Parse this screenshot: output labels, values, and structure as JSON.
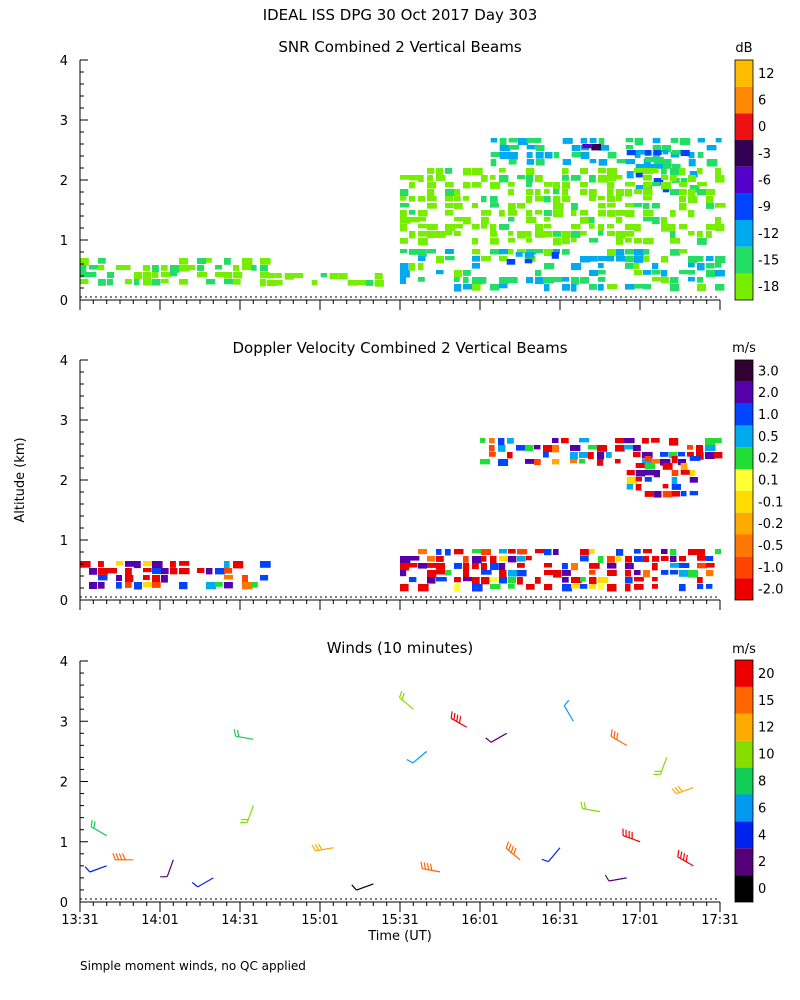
{
  "figure": {
    "title": "IDEAL ISS DPG  30 Oct 2017 Day 303",
    "y_axis_label": "Altitude (km)",
    "x_axis_label": "Time (UT)",
    "footnote": "Simple moment winds, no QC applied",
    "time_ticks": [
      "13:31",
      "14:01",
      "14:31",
      "15:01",
      "15:31",
      "16:01",
      "16:31",
      "17:01",
      "17:31"
    ],
    "altitude_ticks": [
      "0",
      "1",
      "2",
      "3",
      "4"
    ]
  },
  "chart_data": [
    {
      "type": "heatmap",
      "title": "SNR Combined 2 Vertical Beams",
      "xlabel": "",
      "ylabel": "Altitude (km)",
      "x_range": [
        "13:31",
        "17:31"
      ],
      "ylim": [
        0,
        4
      ],
      "colorbar": {
        "unit": "dB",
        "levels": [
          "-18",
          "-15",
          "-12",
          "-9",
          "-6",
          "-3",
          "0",
          "6",
          "12"
        ],
        "colors": [
          "#77ee00",
          "#22dd66",
          "#00aaee",
          "#0044ff",
          "#5500cc",
          "#330055",
          "#ee1111",
          "#ff8800",
          "#ffbb00"
        ]
      },
      "regions": [
        {
          "t0": "13:31",
          "t1": "14:41",
          "z0": 0.3,
          "z1": 0.7,
          "value": -16
        },
        {
          "t0": "14:41",
          "t1": "15:31",
          "z0": 0.25,
          "z1": 0.45,
          "value": -17
        },
        {
          "t0": "15:31",
          "t1": "17:31",
          "z0": 0.25,
          "z1": 0.85,
          "value": -13
        },
        {
          "t0": "16:11",
          "t1": "16:31",
          "z0": 0.6,
          "z1": 0.8,
          "value": -8
        },
        {
          "t0": "16:05",
          "t1": "17:31",
          "z0": 2.3,
          "z1": 2.7,
          "value": -12
        },
        {
          "t0": "16:36",
          "t1": "16:56",
          "z0": 2.5,
          "z1": 2.6,
          "value": -3
        },
        {
          "t0": "16:56",
          "t1": "17:21",
          "z0": 1.8,
          "z1": 2.5,
          "value": -10
        },
        {
          "t0": "15:31",
          "t1": "17:31",
          "z0": 1.0,
          "z1": 2.2,
          "value": -17
        }
      ]
    },
    {
      "type": "heatmap",
      "title": "Doppler Velocity Combined 2 Vertical Beams",
      "xlabel": "",
      "ylabel": "Altitude (km)",
      "x_range": [
        "13:31",
        "17:31"
      ],
      "ylim": [
        0,
        4
      ],
      "colorbar": {
        "unit": "m/s",
        "levels": [
          "-2.0",
          "-1.0",
          "-0.5",
          "-0.2",
          "-0.1",
          "0.1",
          "0.2",
          "0.5",
          "1.0",
          "2.0",
          "3.0"
        ],
        "colors": [
          "#ee0000",
          "#ff4400",
          "#ff7700",
          "#ffaa00",
          "#ffdd00",
          "#ffff33",
          "#22dd33",
          "#00aaee",
          "#0044ff",
          "#5500aa",
          "#330033"
        ]
      },
      "regions": [
        {
          "t0": "13:31",
          "t1": "14:41",
          "z0": 0.25,
          "z1": 0.65,
          "value": 0.0
        },
        {
          "t0": "15:31",
          "t1": "17:31",
          "z0": 0.25,
          "z1": 0.85,
          "value": -0.1
        },
        {
          "t0": "16:01",
          "t1": "17:31",
          "z0": 2.3,
          "z1": 2.7,
          "value": -0.2
        },
        {
          "t0": "16:56",
          "t1": "17:21",
          "z0": 1.75,
          "z1": 2.4,
          "value": -0.15
        }
      ]
    },
    {
      "type": "scatter",
      "title": "Winds (10 minutes)",
      "xlabel": "Time (UT)",
      "ylabel": "Altitude (km)",
      "x_range": [
        "13:31",
        "17:31"
      ],
      "ylim": [
        0,
        4
      ],
      "colorbar": {
        "unit": "m/s",
        "levels": [
          "0",
          "2",
          "4",
          "6",
          "8",
          "10",
          "12",
          "15",
          "20"
        ],
        "colors": [
          "#000000",
          "#550077",
          "#0022ee",
          "#0099ee",
          "#11cc55",
          "#88dd00",
          "#ffaa00",
          "#ff6600",
          "#ee0000"
        ]
      },
      "barbs": [
        {
          "t": "13:41",
          "z": 1.1,
          "speed": 9,
          "dir": 300
        },
        {
          "t": "13:41",
          "z": 0.6,
          "speed": 4,
          "dir": 250
        },
        {
          "t": "13:51",
          "z": 0.7,
          "speed": 18,
          "dir": 270
        },
        {
          "t": "14:06",
          "z": 0.7,
          "speed": 3,
          "dir": 200
        },
        {
          "t": "14:21",
          "z": 0.4,
          "speed": 5,
          "dir": 240
        },
        {
          "t": "14:36",
          "z": 2.7,
          "speed": 8,
          "dir": 280
        },
        {
          "t": "14:36",
          "z": 1.6,
          "speed": 11,
          "dir": 200
        },
        {
          "t": "15:06",
          "z": 0.9,
          "speed": 13,
          "dir": 260
        },
        {
          "t": "15:36",
          "z": 3.2,
          "speed": 10,
          "dir": 310
        },
        {
          "t": "15:41",
          "z": 2.5,
          "speed": 6,
          "dir": 230
        },
        {
          "t": "15:56",
          "z": 2.9,
          "speed": 21,
          "dir": 300
        },
        {
          "t": "16:11",
          "z": 2.8,
          "speed": 3,
          "dir": 240
        },
        {
          "t": "16:36",
          "z": 3.0,
          "speed": 7,
          "dir": 330
        },
        {
          "t": "16:56",
          "z": 2.6,
          "speed": 17,
          "dir": 300
        },
        {
          "t": "17:11",
          "z": 2.4,
          "speed": 10,
          "dir": 200
        },
        {
          "t": "17:21",
          "z": 1.9,
          "speed": 14,
          "dir": 250
        },
        {
          "t": "16:46",
          "z": 1.5,
          "speed": 11,
          "dir": 280
        },
        {
          "t": "17:01",
          "z": 1.0,
          "speed": 20,
          "dir": 290
        },
        {
          "t": "16:16",
          "z": 0.7,
          "speed": 19,
          "dir": 310
        },
        {
          "t": "16:31",
          "z": 0.9,
          "speed": 5,
          "dir": 220
        },
        {
          "t": "15:46",
          "z": 0.5,
          "speed": 18,
          "dir": 280
        },
        {
          "t": "16:56",
          "z": 0.4,
          "speed": 2,
          "dir": 260
        },
        {
          "t": "17:21",
          "z": 0.6,
          "speed": 21,
          "dir": 300
        },
        {
          "t": "15:21",
          "z": 0.3,
          "speed": 1,
          "dir": 250
        }
      ]
    }
  ]
}
